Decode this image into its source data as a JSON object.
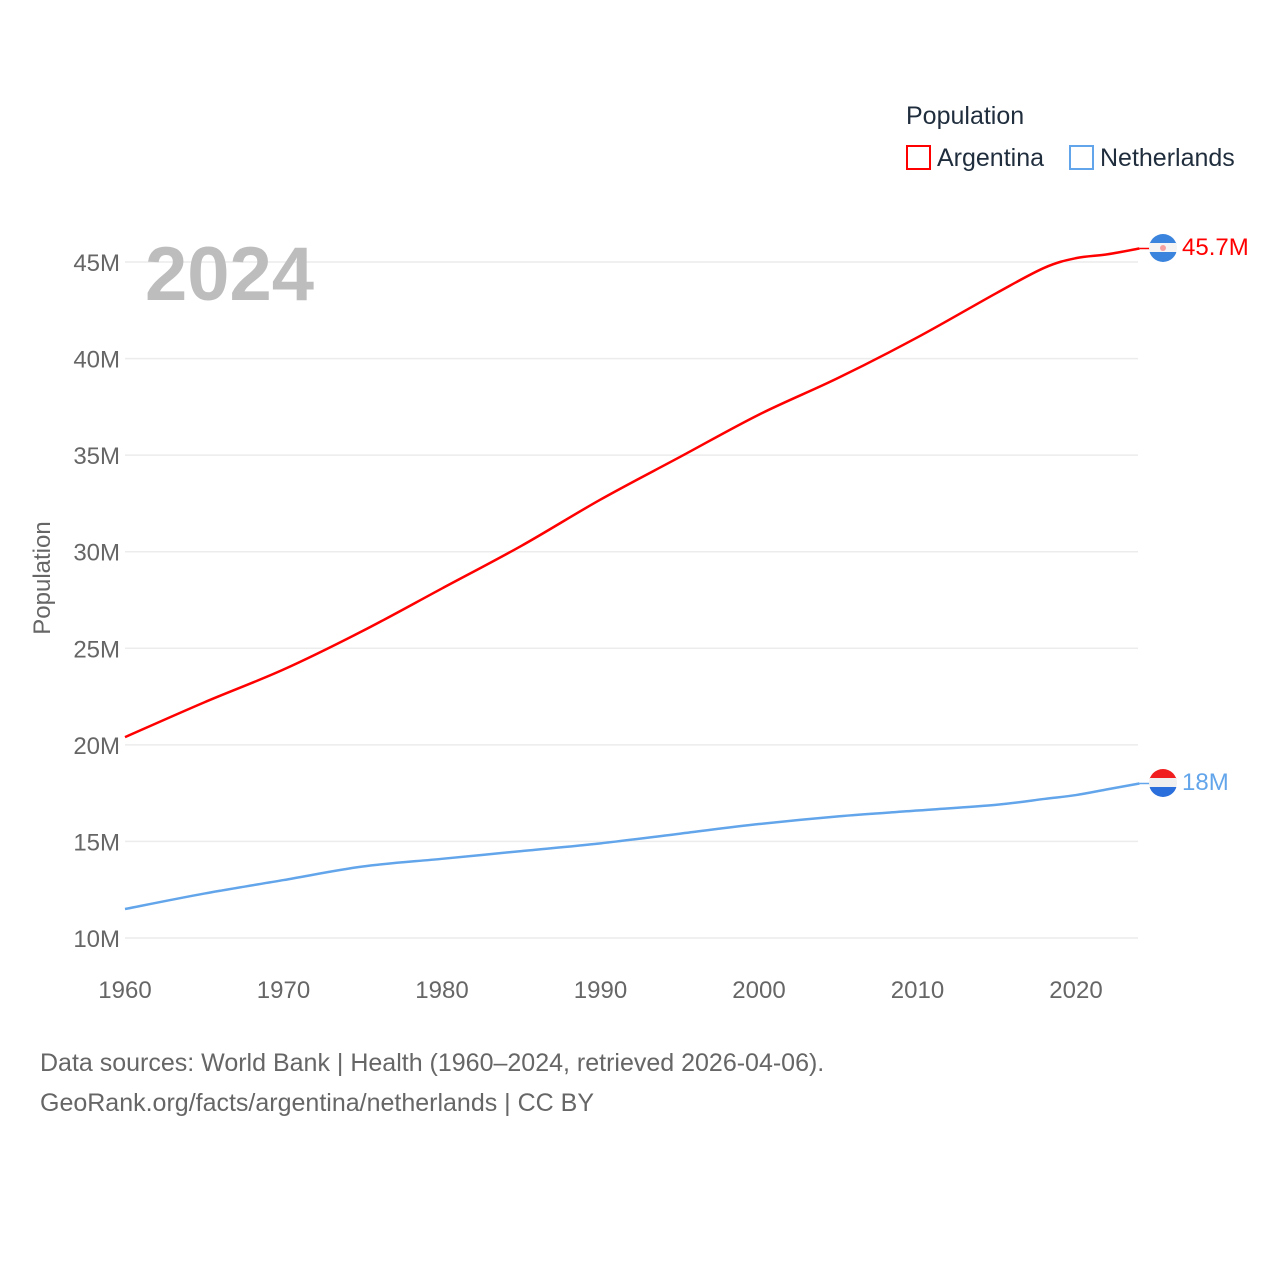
{
  "chart_data": {
    "type": "line",
    "title": "Population",
    "year_label": "2024",
    "xlabel": "",
    "ylabel": "Population",
    "xlim": [
      1960,
      2024
    ],
    "ylim": [
      10,
      47
    ],
    "x_ticks": [
      "1960",
      "1970",
      "1980",
      "1990",
      "2000",
      "2010",
      "2020"
    ],
    "x_tick_values": [
      1960,
      1970,
      1980,
      1990,
      2000,
      2010,
      2020
    ],
    "y_ticks": [
      "10M",
      "15M",
      "20M",
      "25M",
      "30M",
      "35M",
      "40M",
      "45M"
    ],
    "y_tick_values": [
      10,
      15,
      20,
      25,
      30,
      35,
      40,
      45
    ],
    "grid": true,
    "legend_position": "top-right",
    "x": [
      1960,
      1965,
      1970,
      1975,
      1980,
      1985,
      1990,
      1995,
      2000,
      2005,
      2010,
      2015,
      2018,
      2020,
      2022,
      2024
    ],
    "series": [
      {
        "name": "Argentina",
        "color": "#ff0000",
        "end_label": "45.7M",
        "flag": "argentina-flag",
        "values": [
          20.4,
          22.2,
          23.9,
          25.9,
          28.1,
          30.3,
          32.7,
          34.9,
          37.1,
          39.0,
          41.1,
          43.4,
          44.7,
          45.2,
          45.4,
          45.7
        ]
      },
      {
        "name": "Netherlands",
        "color": "#63a5ea",
        "end_label": "18M",
        "flag": "netherlands-flag",
        "values": [
          11.5,
          12.3,
          13.0,
          13.7,
          14.1,
          14.5,
          14.9,
          15.4,
          15.9,
          16.3,
          16.6,
          16.9,
          17.2,
          17.4,
          17.7,
          18.0
        ]
      }
    ]
  },
  "footer": {
    "line1": "Data sources: World Bank | Health (1960–2024, retrieved 2026-04-06).",
    "line2": "GeoRank.org/facts/argentina/netherlands | CC BY"
  }
}
